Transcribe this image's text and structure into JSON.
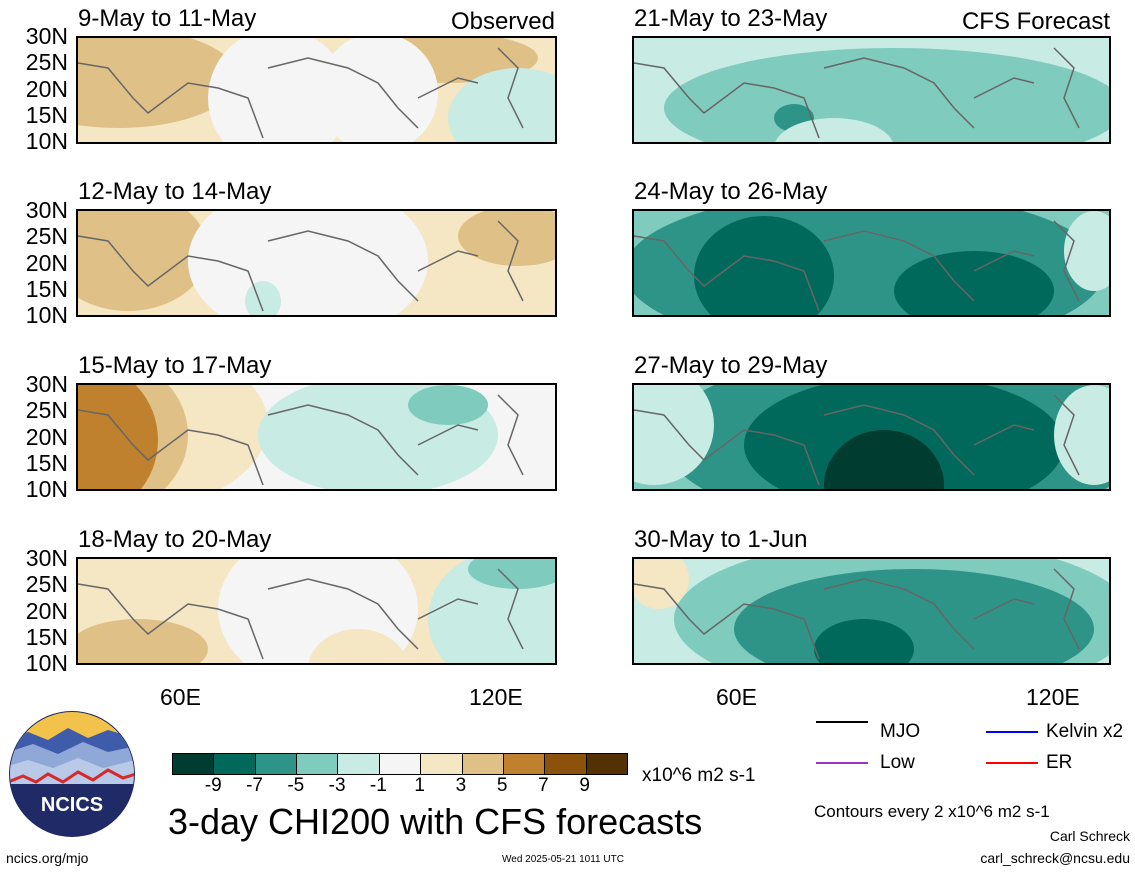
{
  "left_label": "Observed",
  "right_label": "CFS Forecast",
  "lat_ticks": [
    "30N",
    "25N",
    "20N",
    "15N",
    "10N"
  ],
  "lon_ticks": [
    "60E",
    "120E"
  ],
  "panels_left": [
    {
      "title": "9-May to 11-May",
      "pattern": "obs1"
    },
    {
      "title": "12-May to 14-May",
      "pattern": "obs2"
    },
    {
      "title": "15-May to 17-May",
      "pattern": "obs3"
    },
    {
      "title": "18-May to 20-May",
      "pattern": "obs4"
    }
  ],
  "panels_right": [
    {
      "title": "21-May to 23-May",
      "pattern": "fc1"
    },
    {
      "title": "24-May to 26-May",
      "pattern": "fc2"
    },
    {
      "title": "27-May to 29-May",
      "pattern": "fc3"
    },
    {
      "title": "30-May to 1-Jun",
      "pattern": "fc4"
    }
  ],
  "colorbar": {
    "colors": [
      "#003d30",
      "#00695c",
      "#2e9488",
      "#7fcbbd",
      "#c8ebe4",
      "#f5f5f5",
      "#f5e6c4",
      "#dfc188",
      "#bf812d",
      "#8c510a",
      "#543005"
    ],
    "labels": [
      "-9",
      "-7",
      "-5",
      "-3",
      "-1",
      "1",
      "3",
      "5",
      "7",
      "9"
    ],
    "units": "x10^6 m2 s-1"
  },
  "legend": [
    {
      "label": "MJO",
      "color": "#000000"
    },
    {
      "label": "Kelvin x2",
      "color": "#0000ff"
    },
    {
      "label": "Low",
      "color": "#9933cc"
    },
    {
      "label": "ER",
      "color": "#ff0000"
    }
  ],
  "main_title": "3-day CHI200 with CFS forecasts",
  "contours_note": "Contours every 2 x10^6 m2 s-1",
  "author": "Carl Schreck",
  "email": "carl_schreck@ncsu.edu",
  "website": "ncics.org/mjo",
  "timestamp": "Wed 2025-05-21 1011 UTC",
  "logo_text": "NCICS"
}
